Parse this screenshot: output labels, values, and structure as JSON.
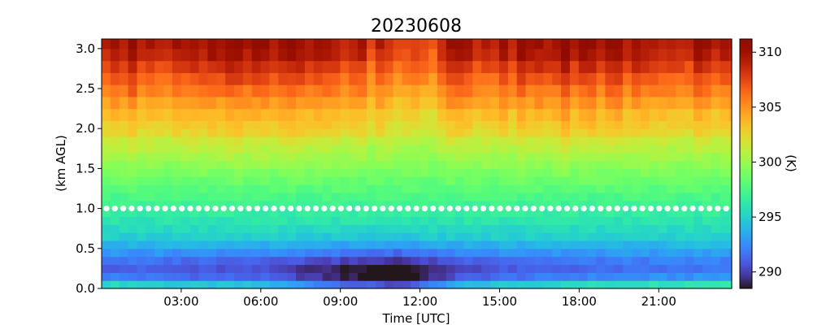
{
  "chart_data": {
    "type": "heatmap",
    "title": "20230608",
    "xlabel": "Time [UTC]",
    "ylabel": "(km AGL)",
    "colorbar_label": "(K)",
    "colormap": "turbo",
    "x_ticks": [
      "03:00",
      "06:00",
      "09:00",
      "12:00",
      "15:00",
      "18:00",
      "21:00"
    ],
    "x_tick_hours": [
      3,
      6,
      9,
      12,
      15,
      18,
      21
    ],
    "x_range_hours": [
      0,
      23.75
    ],
    "y_ticks": [
      "0.0",
      "0.5",
      "1.0",
      "1.5",
      "2.0",
      "2.5",
      "3.0"
    ],
    "y_tick_values": [
      0,
      0.5,
      1.0,
      1.5,
      2.0,
      2.5,
      3.0
    ],
    "y_range_km": [
      0,
      3.12
    ],
    "colorbar_ticks": [
      "290",
      "295",
      "300",
      "305",
      "310"
    ],
    "colorbar_tick_values": [
      290,
      295,
      300,
      305,
      310
    ],
    "color_range_K": [
      288.5,
      311.2
    ],
    "time_step_hours": 0.333,
    "height_levels_km": [
      0,
      0.1,
      0.2,
      0.3,
      0.4,
      0.5,
      0.6,
      0.7,
      0.8,
      0.9,
      1.0,
      1.1,
      1.2,
      1.3,
      1.4,
      1.5,
      1.6,
      1.7,
      1.8,
      1.9,
      2.0,
      2.1,
      2.25,
      2.4,
      2.55,
      2.7,
      2.85,
      3.0,
      3.12
    ],
    "temperature_profile_K": [
      296.0,
      292.5,
      291.5,
      292.0,
      293.0,
      294.0,
      295.0,
      295.5,
      296.0,
      296.5,
      297.0,
      297.5,
      298.0,
      298.5,
      299.0,
      299.5,
      300.0,
      300.5,
      301.0,
      302.0,
      302.5,
      303.0,
      304.0,
      305.0,
      306.0,
      307.0,
      308.0,
      308.5
    ],
    "surface_cooling_K": {
      "00:00": -0.5,
      "03:00": -1.5,
      "06:00": -2.0,
      "09:00": -5.0,
      "11:00": -6.5,
      "12:00": -5.5,
      "13:30": -2.5,
      "15:00": -1.5,
      "18:00": -0.5,
      "21:00": 0.0,
      "23:45": 0.5
    },
    "upper_level_anomalies_K": {
      "00:00": 1.5,
      "04:00": 1.5,
      "06:00": 1.0,
      "08:00": 1.5,
      "10:00": 0.0,
      "12:30": -1.0,
      "13:15": 1.0,
      "15:00": 1.0,
      "17:15": 2.0,
      "19:00": 1.5,
      "21:00": 1.5,
      "23:00": 1.0
    },
    "marker_line": {
      "height_km": 1.0,
      "style": "white dotted"
    }
  }
}
